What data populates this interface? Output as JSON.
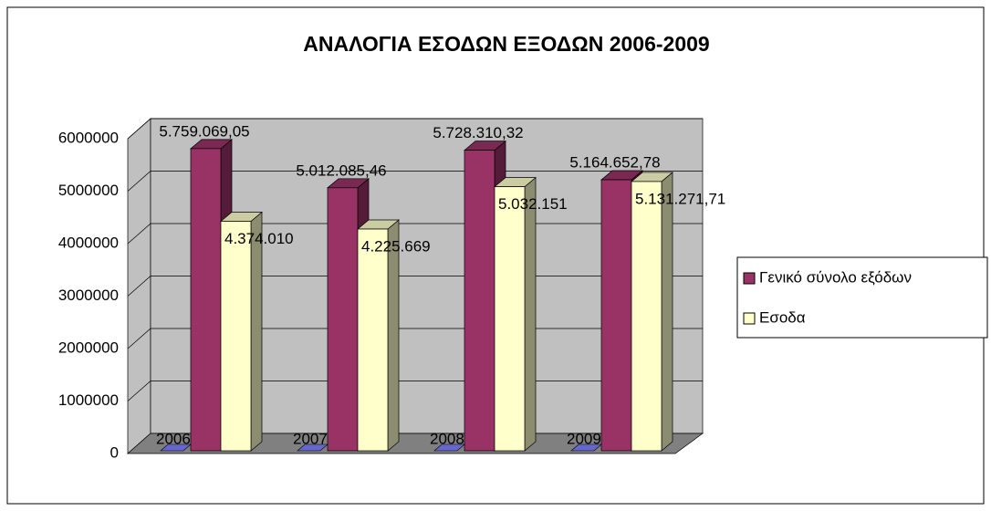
{
  "chart_data": {
    "type": "bar",
    "title": "ΑΝΑΛΟΓΙΑ ΕΣΟΔΩΝ ΕΞΟΔΩΝ 2006-2009",
    "categories": [
      "2006",
      "2007",
      "2008",
      "2009"
    ],
    "series": [
      {
        "name": "Γενικό σύνολο εξόδων",
        "color": "#993366",
        "values": [
          5759069.05,
          5012085.46,
          5728310.32,
          5164652.78
        ],
        "value_labels": [
          "5.759.069,05",
          "5.012.085,46",
          "5.728.310,32",
          "5.164.652,78"
        ]
      },
      {
        "name": "Εσοδα",
        "color": "#ffffcc",
        "values": [
          4374010,
          4225669,
          5032151,
          5131271.71
        ],
        "value_labels": [
          "4.374.010",
          "4.225.669",
          "5.032.151",
          "5.131.271,71"
        ]
      }
    ],
    "ylim": [
      0,
      6000000
    ],
    "yticks": [
      0,
      1000000,
      2000000,
      3000000,
      4000000,
      5000000,
      6000000
    ],
    "grid": true,
    "legend": "right"
  }
}
